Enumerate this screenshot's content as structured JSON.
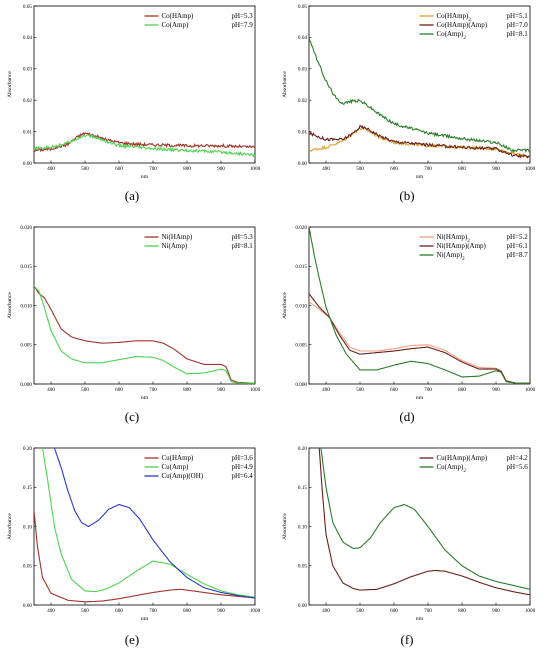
{
  "chart_data": [
    {
      "type": "line",
      "caption": "(a)",
      "xlabel": "nm",
      "ylabel": "Absorbance",
      "xlim": [
        350,
        1000
      ],
      "ylim": [
        0,
        0.05
      ],
      "xticks": [
        400,
        500,
        600,
        700,
        800,
        900,
        1000
      ],
      "yticks": [
        0.0,
        0.01,
        0.02,
        0.03,
        0.04,
        0.05
      ],
      "ytick_labels": [
        "0.00",
        "0.01",
        "0.02",
        "0.03",
        "0.04",
        "0.05"
      ],
      "legend": "top-right",
      "series": [
        {
          "name": "Co(HAmp)",
          "ph": "pH=5.3",
          "color": "#a0352a",
          "x": [
            350,
            400,
            450,
            480,
            500,
            520,
            560,
            600,
            650,
            700,
            800,
            900,
            1000
          ],
          "y": [
            0.004,
            0.0045,
            0.006,
            0.0085,
            0.0095,
            0.009,
            0.0075,
            0.0065,
            0.006,
            0.0058,
            0.0055,
            0.0055,
            0.005
          ]
        },
        {
          "name": "Co(Amp)",
          "ph": "pH=7.9",
          "color": "#4fd34f",
          "x": [
            350,
            400,
            450,
            480,
            500,
            520,
            560,
            600,
            650,
            700,
            800,
            900,
            1000
          ],
          "y": [
            0.0045,
            0.005,
            0.0065,
            0.008,
            0.0088,
            0.0085,
            0.007,
            0.0055,
            0.005,
            0.0045,
            0.004,
            0.0035,
            0.0025
          ]
        }
      ]
    },
    {
      "type": "line",
      "caption": "(b)",
      "xlabel": "nm",
      "ylabel": "Absorbance",
      "xlim": [
        350,
        1000
      ],
      "ylim": [
        0,
        0.05
      ],
      "xticks": [
        400,
        500,
        600,
        700,
        800,
        900,
        1000
      ],
      "yticks": [
        0.0,
        0.01,
        0.02,
        0.03,
        0.04,
        0.05
      ],
      "ytick_labels": [
        "0.00",
        "0.01",
        "0.02",
        "0.03",
        "0.04",
        "0.05"
      ],
      "legend": "top-right",
      "series": [
        {
          "name": "Co(HAmp)",
          "sub": "2",
          "ph": "pH=5.1",
          "color": "#d7a531",
          "x": [
            350,
            400,
            450,
            480,
            500,
            520,
            560,
            600,
            700,
            800,
            900,
            950,
            1000
          ],
          "y": [
            0.004,
            0.005,
            0.007,
            0.0095,
            0.011,
            0.0105,
            0.008,
            0.0065,
            0.0055,
            0.005,
            0.0045,
            0.003,
            0.002
          ]
        },
        {
          "name": "Co(HAmp)(Amp)",
          "ph": "pH=7.0",
          "color": "#6b1f1a",
          "x": [
            350,
            400,
            450,
            480,
            500,
            520,
            560,
            600,
            700,
            800,
            900,
            950,
            1000
          ],
          "y": [
            0.0095,
            0.0075,
            0.0075,
            0.0095,
            0.0115,
            0.011,
            0.0085,
            0.0068,
            0.0058,
            0.005,
            0.0045,
            0.0025,
            0.002
          ]
        },
        {
          "name": "Co(Amp)",
          "sub": "2",
          "ph": "pH=8.1",
          "color": "#2a7d2a",
          "x": [
            350,
            370,
            400,
            430,
            450,
            480,
            500,
            520,
            550,
            600,
            700,
            800,
            900,
            950,
            1000
          ],
          "y": [
            0.04,
            0.034,
            0.026,
            0.0205,
            0.019,
            0.0198,
            0.0198,
            0.0185,
            0.016,
            0.0125,
            0.0095,
            0.0078,
            0.0065,
            0.004,
            0.004
          ]
        }
      ]
    },
    {
      "type": "line",
      "caption": "(c)",
      "xlabel": "nm",
      "ylabel": "Absorbance",
      "xlim": [
        350,
        1000
      ],
      "ylim": [
        0,
        0.02
      ],
      "xticks": [
        400,
        500,
        600,
        700,
        800,
        900,
        1000
      ],
      "yticks": [
        0.0,
        0.005,
        0.01,
        0.015,
        0.02
      ],
      "ytick_labels": [
        "0.000",
        "0.005",
        "0.010",
        "0.015",
        "0.020"
      ],
      "legend": "top-right",
      "series": [
        {
          "name": "Ni(HAmp)",
          "ph": "pH=5.3",
          "color": "#a0352a",
          "x": [
            350,
            365,
            380,
            400,
            430,
            460,
            500,
            550,
            600,
            650,
            700,
            730,
            760,
            800,
            850,
            900,
            915,
            930,
            950,
            1000
          ],
          "y": [
            0.0125,
            0.0115,
            0.011,
            0.0095,
            0.007,
            0.006,
            0.0055,
            0.0052,
            0.0053,
            0.0055,
            0.0055,
            0.0052,
            0.0045,
            0.0032,
            0.0025,
            0.0025,
            0.0022,
            0.0005,
            0.0002,
            0.0001
          ]
        },
        {
          "name": "Ni(Amp)",
          "ph": "pH=8.1",
          "color": "#4fd34f",
          "x": [
            350,
            365,
            380,
            400,
            430,
            460,
            500,
            550,
            600,
            650,
            700,
            730,
            760,
            800,
            850,
            900,
            915,
            930,
            950,
            1000
          ],
          "y": [
            0.0125,
            0.0118,
            0.0098,
            0.0068,
            0.0042,
            0.0032,
            0.0027,
            0.0027,
            0.0031,
            0.0035,
            0.0034,
            0.003,
            0.0022,
            0.0013,
            0.0014,
            0.0019,
            0.0017,
            0.0003,
            0.0001,
            0.0001
          ]
        }
      ]
    },
    {
      "type": "line",
      "caption": "(d)",
      "xlabel": "nm",
      "ylabel": "Absorbance",
      "xlim": [
        350,
        1000
      ],
      "ylim": [
        0,
        0.02
      ],
      "xticks": [
        400,
        500,
        600,
        700,
        800,
        900,
        1000
      ],
      "yticks": [
        0.0,
        0.005,
        0.01,
        0.015,
        0.02
      ],
      "ytick_labels": [
        "0.000",
        "0.005",
        "0.010",
        "0.015",
        "0.020"
      ],
      "legend": "top-right",
      "series": [
        {
          "name": "Ni(HAmp)",
          "sub": "2",
          "ph": "pH=5.2",
          "color": "#f0a080",
          "x": [
            350,
            380,
            410,
            440,
            470,
            500,
            550,
            600,
            650,
            700,
            750,
            800,
            850,
            900,
            915,
            930,
            960,
            1000
          ],
          "y": [
            0.0105,
            0.0095,
            0.0085,
            0.0065,
            0.0047,
            0.0042,
            0.0042,
            0.0045,
            0.0049,
            0.005,
            0.0043,
            0.003,
            0.0021,
            0.002,
            0.0017,
            0.0004,
            0.0001,
            0.0001
          ]
        },
        {
          "name": "Ni(HAmp)(Amp)",
          "ph": "pH=6.1",
          "color": "#6b1f1a",
          "x": [
            350,
            380,
            410,
            440,
            470,
            500,
            550,
            600,
            650,
            700,
            750,
            800,
            850,
            900,
            915,
            930,
            960,
            1000
          ],
          "y": [
            0.0115,
            0.0098,
            0.0085,
            0.0062,
            0.0043,
            0.0038,
            0.004,
            0.0042,
            0.0045,
            0.0047,
            0.004,
            0.0028,
            0.0019,
            0.0019,
            0.0016,
            0.0004,
            0.0001,
            0.0001
          ]
        },
        {
          "name": "Ni(Amp)",
          "sub": "2",
          "ph": "pH=8.7",
          "color": "#2a7d2a",
          "x": [
            350,
            365,
            380,
            400,
            430,
            460,
            500,
            550,
            600,
            650,
            700,
            750,
            800,
            850,
            900,
            915,
            930,
            960,
            1000
          ],
          "y": [
            0.02,
            0.0165,
            0.0135,
            0.0098,
            0.0062,
            0.0038,
            0.0018,
            0.0018,
            0.0024,
            0.0029,
            0.0026,
            0.0018,
            0.0009,
            0.001,
            0.0017,
            0.0015,
            0.0003,
            0.0001,
            0.0001
          ]
        }
      ]
    },
    {
      "type": "line",
      "caption": "(e)",
      "xlabel": "nm",
      "ylabel": "Absorbance",
      "xlim": [
        350,
        1000
      ],
      "ylim": [
        0,
        0.2
      ],
      "xticks": [
        400,
        500,
        600,
        700,
        800,
        900,
        1000
      ],
      "yticks": [
        0.0,
        0.05,
        0.1,
        0.15,
        0.2
      ],
      "ytick_labels": [
        "0.00",
        "0.05",
        "0.10",
        "0.15",
        "0.20"
      ],
      "legend": "top-right",
      "series": [
        {
          "name": "Cu(HAmp)",
          "ph": "pH=3.6",
          "color": "#a0352a",
          "x": [
            350,
            360,
            375,
            400,
            450,
            500,
            550,
            600,
            650,
            700,
            750,
            780,
            800,
            850,
            900,
            950,
            1000
          ],
          "y": [
            0.12,
            0.075,
            0.035,
            0.015,
            0.006,
            0.004,
            0.005,
            0.008,
            0.012,
            0.016,
            0.019,
            0.02,
            0.019,
            0.016,
            0.013,
            0.011,
            0.009
          ]
        },
        {
          "name": "Cu(Amp)",
          "ph": "pH=4.9",
          "color": "#4fd34f",
          "x": [
            375,
            390,
            410,
            430,
            460,
            500,
            530,
            560,
            600,
            650,
            700,
            750,
            800,
            850,
            900,
            950,
            1000
          ],
          "y": [
            0.2,
            0.16,
            0.1,
            0.065,
            0.033,
            0.018,
            0.017,
            0.02,
            0.028,
            0.043,
            0.056,
            0.052,
            0.039,
            0.027,
            0.018,
            0.013,
            0.01
          ]
        },
        {
          "name": "Cu(Amp)(OH)",
          "ph": "pH=6.4",
          "color": "#2b3bc2",
          "x": [
            410,
            430,
            450,
            470,
            490,
            510,
            540,
            570,
            600,
            630,
            660,
            700,
            750,
            800,
            850,
            900,
            950,
            1000
          ],
          "y": [
            0.2,
            0.175,
            0.145,
            0.12,
            0.105,
            0.1,
            0.108,
            0.122,
            0.128,
            0.124,
            0.11,
            0.083,
            0.055,
            0.035,
            0.022,
            0.016,
            0.012,
            0.009
          ]
        }
      ]
    },
    {
      "type": "line",
      "caption": "(f)",
      "xlabel": "nm",
      "ylabel": "Absorbance",
      "xlim": [
        350,
        1000
      ],
      "ylim": [
        0,
        0.2
      ],
      "xticks": [
        400,
        500,
        600,
        700,
        800,
        900,
        1000
      ],
      "yticks": [
        0.0,
        0.05,
        0.1,
        0.15,
        0.2
      ],
      "ytick_labels": [
        "0.00",
        "0.05",
        "0.10",
        "0.15",
        "0.20"
      ],
      "legend": "top-right",
      "series": [
        {
          "name": "Cu(HAmp)(Amp)",
          "ph": "pH=4.2",
          "color": "#6b1f1a",
          "x": [
            380,
            390,
            400,
            420,
            450,
            480,
            500,
            550,
            600,
            650,
            700,
            720,
            750,
            800,
            850,
            900,
            950,
            1000
          ],
          "y": [
            0.2,
            0.14,
            0.09,
            0.05,
            0.028,
            0.021,
            0.019,
            0.02,
            0.027,
            0.036,
            0.043,
            0.044,
            0.043,
            0.037,
            0.029,
            0.022,
            0.017,
            0.013
          ]
        },
        {
          "name": "Cu(Amp)",
          "sub": "2",
          "ph": "pH=5.6",
          "color": "#2a7d2a",
          "x": [
            385,
            400,
            420,
            450,
            480,
            500,
            530,
            560,
            600,
            630,
            660,
            700,
            750,
            800,
            850,
            900,
            950,
            1000
          ],
          "y": [
            0.2,
            0.15,
            0.105,
            0.08,
            0.072,
            0.073,
            0.085,
            0.105,
            0.124,
            0.128,
            0.122,
            0.1,
            0.07,
            0.05,
            0.037,
            0.03,
            0.025,
            0.02
          ]
        }
      ]
    }
  ]
}
